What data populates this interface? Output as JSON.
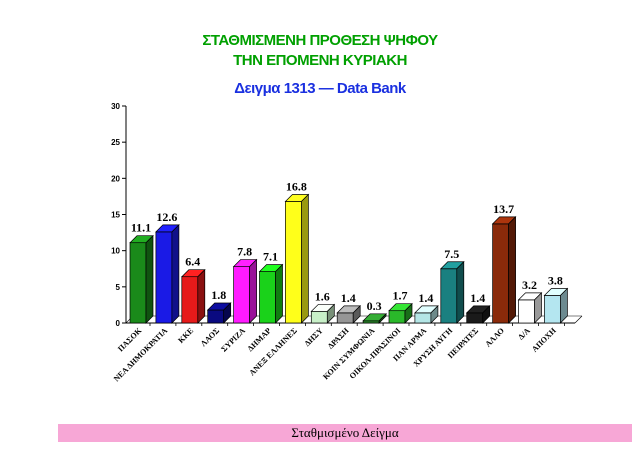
{
  "title_lines": [
    "ΣΤΑΘΜΙΣΜΕΝΗ ΠΡΟΘΕΣΗ ΨΗΦΟΥ",
    "ΤΗΝ ΕΠΟΜΕΝΗ ΚΥΡΙΑΚΗ"
  ],
  "sample_label": "Δειγμα 1313  —  Data Bank",
  "footer_label": "Σταθμισμένο Δείγμα",
  "chart_data": {
    "type": "bar",
    "title": "ΣΤΑΘΜΙΣΜΕΝΗ ΠΡΟΘΕΣΗ ΨΗΦΟΥ ΤΗΝ ΕΠΟΜΕΝΗ ΚΥΡΙΑΚΗ",
    "subtitle": "Δειγμα 1313 — Data Bank",
    "xlabel": "Σταθμισμένο Δείγμα",
    "ylabel": "",
    "ylim": [
      0,
      30
    ],
    "yticks": [
      0,
      5,
      10,
      15,
      20,
      25,
      30
    ],
    "grid": false,
    "legend": "none",
    "categories": [
      "ΠΑΣΟΚ",
      "ΝΕΑ ΔΗΜΟΚΡΑΤΙΑ",
      "ΚΚΕ",
      "ΛΑΟΣ",
      "ΣΥΡΙΖΑ",
      "ΔΗΜΑΡ",
      "ΑΝΕΞ ΕΛΛΗΝΕΣ",
      "ΔΗΣΥ",
      "ΔΡΑΣΗ",
      "ΚΟΙΝ ΣΥΜΦΩΝΙΑ",
      "ΟΙΚΟΛ-ΠΡΑΣΙΝΟΙ",
      "ΠΑΝ ΑΡΜΑ",
      "ΧΡΥΣΗ ΑΥΓΗ",
      "ΠΕΙΡΑΤΕΣ",
      "ΑΛΛΟ",
      "Δ/Α",
      "ΑΠΟΧΗ"
    ],
    "values": [
      11.1,
      12.6,
      6.4,
      1.8,
      7.8,
      7.1,
      16.8,
      1.6,
      1.4,
      0.3,
      1.7,
      1.4,
      7.5,
      1.4,
      13.7,
      3.2,
      3.8
    ],
    "data_labels": [
      "11.1",
      "12.6",
      "6.4",
      "1.8",
      "7.8",
      "7.1",
      "16.8",
      "1.6",
      "1.4",
      "0.3",
      "1.7",
      "1.4",
      "7.5",
      "1.4",
      "13.7",
      "3.2",
      "3.8"
    ],
    "colors": [
      "#1a8a1a",
      "#1a1ae6",
      "#e61a1a",
      "#0a0a80",
      "#ff1aff",
      "#1ad21a",
      "#ffff1a",
      "#c8f0c8",
      "#969696",
      "#2a8a2a",
      "#2ab82a",
      "#b4e6e6",
      "#1a8080",
      "#1a1a1a",
      "#8a2a0a",
      "#ffffff",
      "#b4e6f0"
    ]
  }
}
